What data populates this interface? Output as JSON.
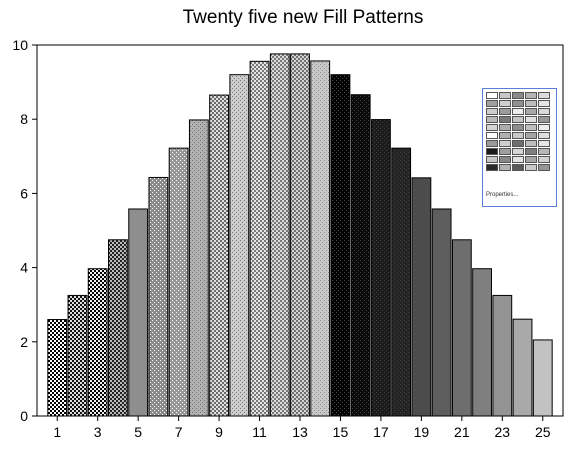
{
  "chart_data": {
    "type": "bar",
    "title": "Twenty five new Fill Patterns",
    "xlabel": "",
    "ylabel": "",
    "ylim": [
      0,
      10
    ],
    "xlim": [
      0,
      26
    ],
    "y_ticks": [
      0,
      2,
      4,
      6,
      8,
      10
    ],
    "x_tick_labels": [
      "1",
      "3",
      "5",
      "7",
      "9",
      "11",
      "13",
      "15",
      "17",
      "19",
      "21",
      "23",
      "25"
    ],
    "x_tick_values": [
      1,
      3,
      5,
      7,
      9,
      11,
      13,
      15,
      17,
      19,
      21,
      23,
      25
    ],
    "categories": [
      1,
      2,
      3,
      4,
      5,
      6,
      7,
      8,
      9,
      10,
      11,
      12,
      13,
      14,
      15,
      16,
      17,
      18,
      19,
      20,
      21,
      22,
      23,
      24,
      25
    ],
    "values": [
      2.6,
      3.25,
      3.97,
      4.75,
      5.58,
      6.43,
      7.22,
      7.98,
      8.65,
      9.2,
      9.56,
      9.76,
      9.76,
      9.57,
      9.2,
      8.66,
      7.99,
      7.22,
      6.42,
      5.58,
      4.75,
      3.97,
      3.25,
      2.61,
      2.05
    ],
    "grid": false,
    "legend": "none"
  },
  "fill_patterns": [
    {
      "type": "check",
      "fg": "#000000",
      "bg": "#ffffff"
    },
    {
      "type": "check",
      "fg": "#111111",
      "bg": "#dddddd"
    },
    {
      "type": "check",
      "fg": "#000000",
      "bg": "#f2f2f2"
    },
    {
      "type": "check",
      "fg": "#222222",
      "bg": "#bbbbbb"
    },
    {
      "type": "solid",
      "fg": "#8e8e8e",
      "bg": "#8e8e8e"
    },
    {
      "type": "dots",
      "fg": "#ffffff",
      "bg": "#8a8a8a"
    },
    {
      "type": "dots",
      "fg": "#ffffff",
      "bg": "#979797"
    },
    {
      "type": "dots",
      "fg": "#6f6f6f",
      "bg": "#b2b2b2"
    },
    {
      "type": "check",
      "fg": "#6a6a6a",
      "bg": "#e0e0e0"
    },
    {
      "type": "dots",
      "fg": "#7d7d7d",
      "bg": "#cccccc"
    },
    {
      "type": "check",
      "fg": "#7a7a7a",
      "bg": "#e4e4e4"
    },
    {
      "type": "check",
      "fg": "#777777",
      "bg": "#dcdcdc"
    },
    {
      "type": "check",
      "fg": "#707070",
      "bg": "#d4d4d4"
    },
    {
      "type": "dots",
      "fg": "#8c8c8c",
      "bg": "#c8c8c8"
    },
    {
      "type": "dots",
      "fg": "#4a4a4a",
      "bg": "#000000"
    },
    {
      "type": "dots",
      "fg": "#444444",
      "bg": "#0a0a0a"
    },
    {
      "type": "dots",
      "fg": "#3a3a3a",
      "bg": "#1c1c1c"
    },
    {
      "type": "dots",
      "fg": "#3d3d3d",
      "bg": "#242424"
    },
    {
      "type": "solid",
      "fg": "#4c4c4c",
      "bg": "#4c4c4c"
    },
    {
      "type": "solid",
      "fg": "#5e5e5e",
      "bg": "#5e5e5e"
    },
    {
      "type": "solid",
      "fg": "#6e6e6e",
      "bg": "#6e6e6e"
    },
    {
      "type": "solid",
      "fg": "#7f7f7f",
      "bg": "#7f7f7f"
    },
    {
      "type": "solid",
      "fg": "#939393",
      "bg": "#939393"
    },
    {
      "type": "solid",
      "fg": "#a9a9a9",
      "bg": "#a9a9a9"
    },
    {
      "type": "solid",
      "fg": "#c2c2c2",
      "bg": "#c2c2c2"
    }
  ],
  "colors": {
    "bar_outline": "#000000",
    "axis": "#000000",
    "popup_border": "#5a7fd6"
  },
  "palette_popup": {
    "footer_label": "Properties...",
    "cells": [
      "#ffffff",
      "#c8c8c8",
      "#8a8a8a",
      "#b4b4b4",
      "#dcdcdc",
      "#a0a0a0",
      "#d0d0d0",
      "#909090",
      "#bcbcbc",
      "#e4e4e4",
      "#cccccc",
      "#9c9c9c",
      "#ececec",
      "#a8a8a8",
      "#d8d8d8",
      "#b8b8b8",
      "#7a7a7a",
      "#c4c4c4",
      "#e0e0e0",
      "#989898",
      "#d4d4d4",
      "#aeaeae",
      "#8e8e8e",
      "#c0c0c0",
      "#eeeeee",
      "#ffffff",
      "#b0b0b0",
      "#c8c8c8",
      "#a4a4a4",
      "#dedede",
      "#9a9a9a",
      "#cfcfcf",
      "#6e6e6e",
      "#bebebe",
      "#e6e6e6",
      "#1a1a1a",
      "#9e9e9e",
      "#d6d6d6",
      "#7e7e7e",
      "#b6b6b6",
      "#c6c6c6",
      "#888888",
      "#e2e2e2",
      "#a6a6a6",
      "#d2d2d2",
      "#2a2a2a",
      "#b2b2b2",
      "#5a5a5a",
      "#cacaca",
      "#969696"
    ]
  }
}
